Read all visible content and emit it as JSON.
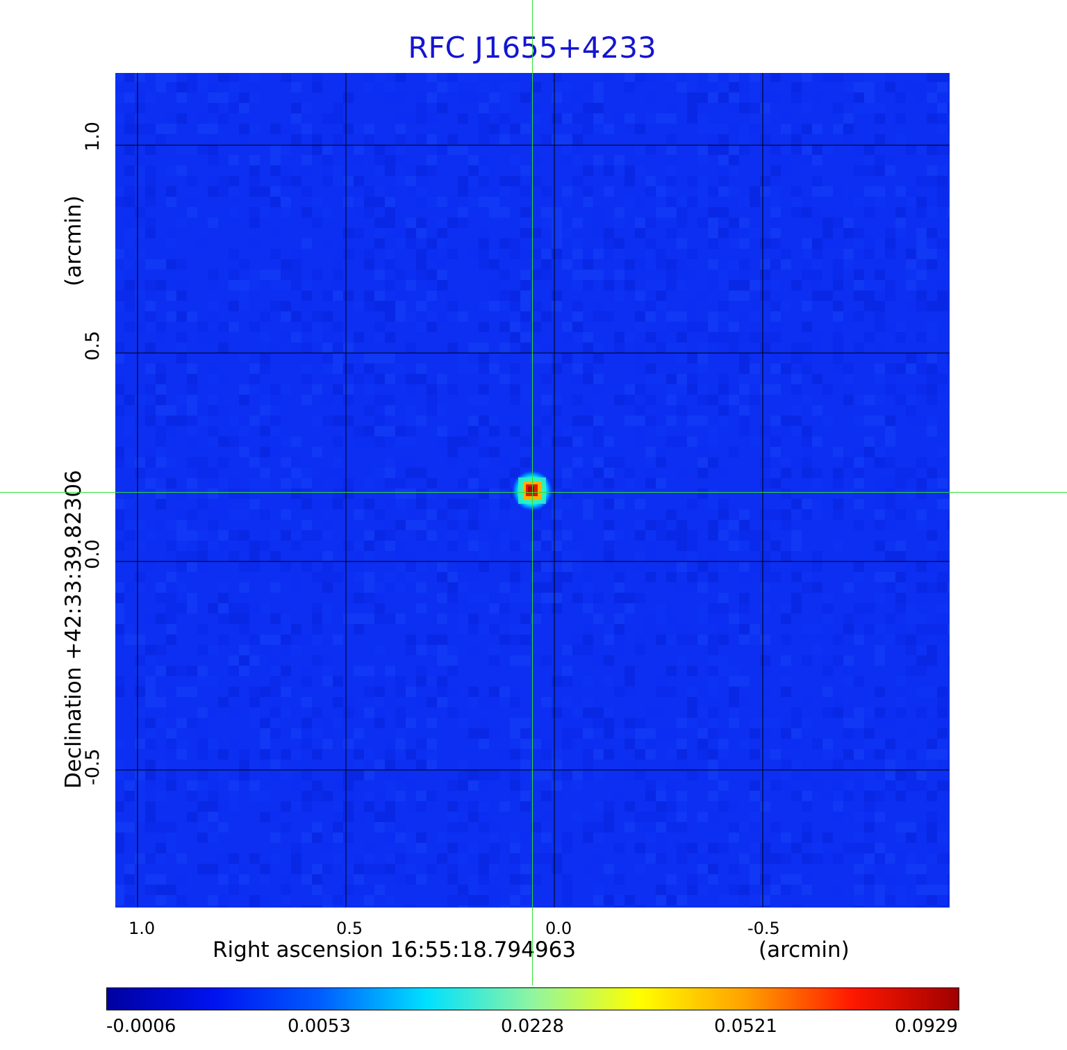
{
  "title": "RFC J1655+4233",
  "axes": {
    "y_label": "Declination  +42:33:39.82306",
    "y_unit": "(arcmin)",
    "x_label": "Right ascension  16:55:18.794963",
    "x_unit": "(arcmin)",
    "x_ticks": [
      "1.0",
      "0.5",
      "0.0",
      "-0.5"
    ],
    "y_ticks": [
      "1.0",
      "0.5",
      "0.0",
      "-0.5"
    ]
  },
  "colorbar": {
    "ticks": [
      "-0.0006",
      "0.0053",
      "0.0228",
      "0.0521",
      "0.0929"
    ],
    "colormap": [
      "#0000a0",
      "#0012f0",
      "#005cff",
      "#00e0ff",
      "#90f5a0",
      "#ffff00",
      "#ffa000",
      "#ff1800",
      "#a00000"
    ]
  },
  "colors": {
    "title": "#1414d2",
    "background_field": "#0c2ff2",
    "grid": "#000000",
    "crosshair": "#2fe02f"
  }
}
